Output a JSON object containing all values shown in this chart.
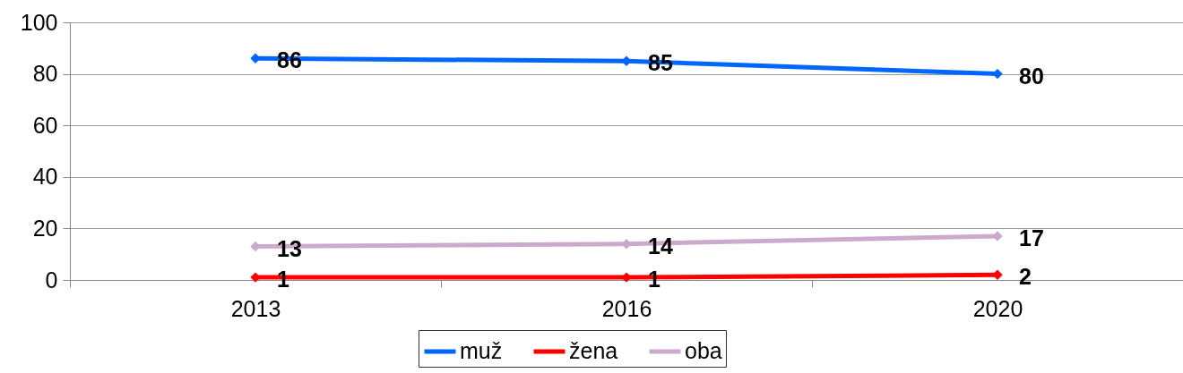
{
  "chart_data": {
    "type": "line",
    "categories": [
      "2013",
      "2016",
      "2020"
    ],
    "series": [
      {
        "name": "muž",
        "color": "#0066ff",
        "values": [
          86,
          85,
          80
        ]
      },
      {
        "name": "žena",
        "color": "#ff0000",
        "values": [
          1,
          1,
          2
        ]
      },
      {
        "name": "oba",
        "color": "#ccaacc",
        "values": [
          13,
          14,
          17
        ]
      }
    ],
    "ylim": [
      0,
      100
    ],
    "yticks": [
      0,
      20,
      40,
      60,
      80,
      100
    ],
    "grid": "y",
    "data_labels": true,
    "legend": "bottom",
    "marker": "diamond",
    "line_style": "solid"
  }
}
